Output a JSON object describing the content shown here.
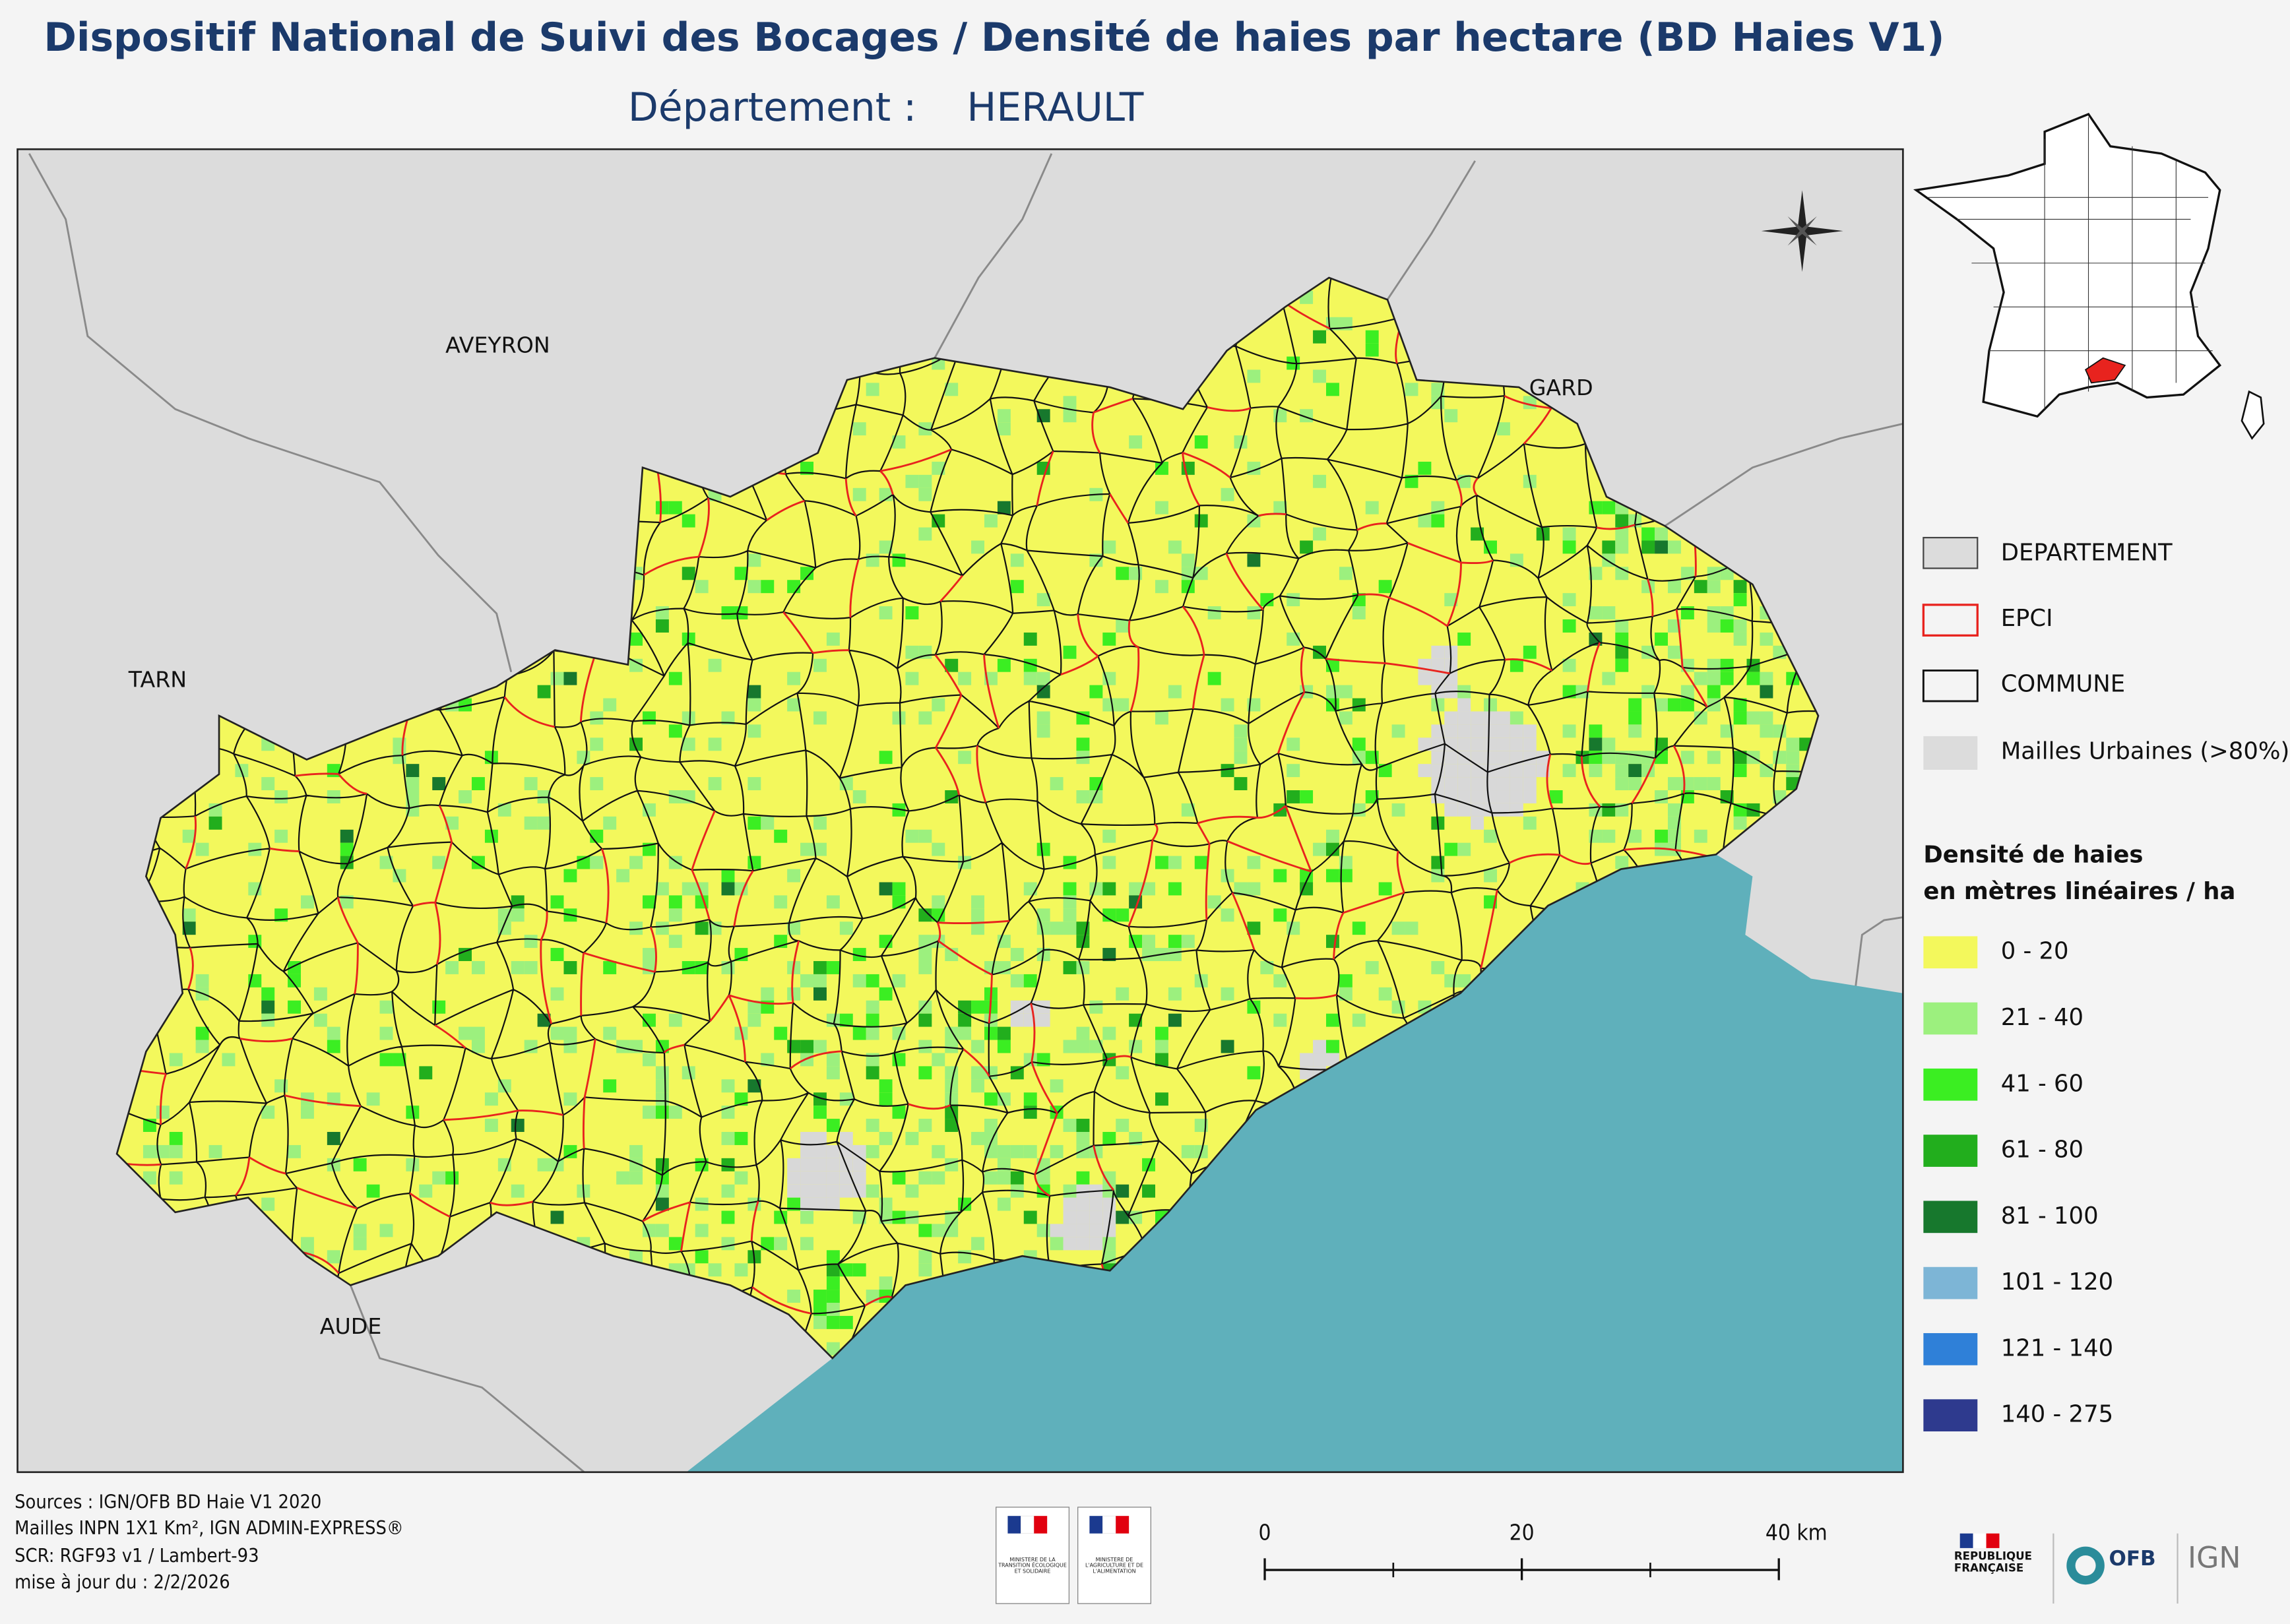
{
  "header": {
    "title": "Dispositif National de Suivi des Bocages / Densité de haies par hectare (BD Haies V1)",
    "subtitle_label": "Département :",
    "subtitle_value": "HERAULT"
  },
  "map": {
    "neighbors": [
      "AVEYRON",
      "GARD",
      "TARN",
      "AUDE"
    ]
  },
  "legend": {
    "layers": [
      "DEPARTEMENT",
      "EPCI",
      "COMMUNE",
      "Mailles Urbaines (>80%)"
    ],
    "density_title": [
      "Densité de haies",
      "en mètres linéaires / ha"
    ],
    "classes": [
      {
        "label": "0 - 20",
        "color": "#f3f85c"
      },
      {
        "label": "21 - 40",
        "color": "#9cf07e"
      },
      {
        "label": "41 - 60",
        "color": "#3bee22"
      },
      {
        "label": "61 - 80",
        "color": "#22ae1d"
      },
      {
        "label": "81 - 100",
        "color": "#17782d"
      },
      {
        "label": "101 - 120",
        "color": "#7db5d6"
      },
      {
        "label": "121 - 140",
        "color": "#2f80d8"
      },
      {
        "label": "140 - 275",
        "color": "#2e3a8e"
      }
    ]
  },
  "footer": {
    "sources": [
      "Sources : IGN/OFB BD Haie V1 2020",
      "Mailles INPN 1X1 Km²,  IGN ADMIN-EXPRESS®",
      "SCR: RGF93 v1 / Lambert-93",
      "mise à jour du  : 2/2/2026"
    ],
    "scale_labels": [
      "0",
      "20",
      "40 km"
    ],
    "ministries": [
      "MINISTÈRE DE LA TRANSITION ÉCOLOGIQUE ET SOLIDAIRE",
      "MINISTÈRE DE L'AGRICULTURE ET DE L'ALIMENTATION"
    ],
    "logos": [
      "RÉPUBLIQUE FRANÇAISE",
      "OFB",
      "IGN"
    ]
  }
}
